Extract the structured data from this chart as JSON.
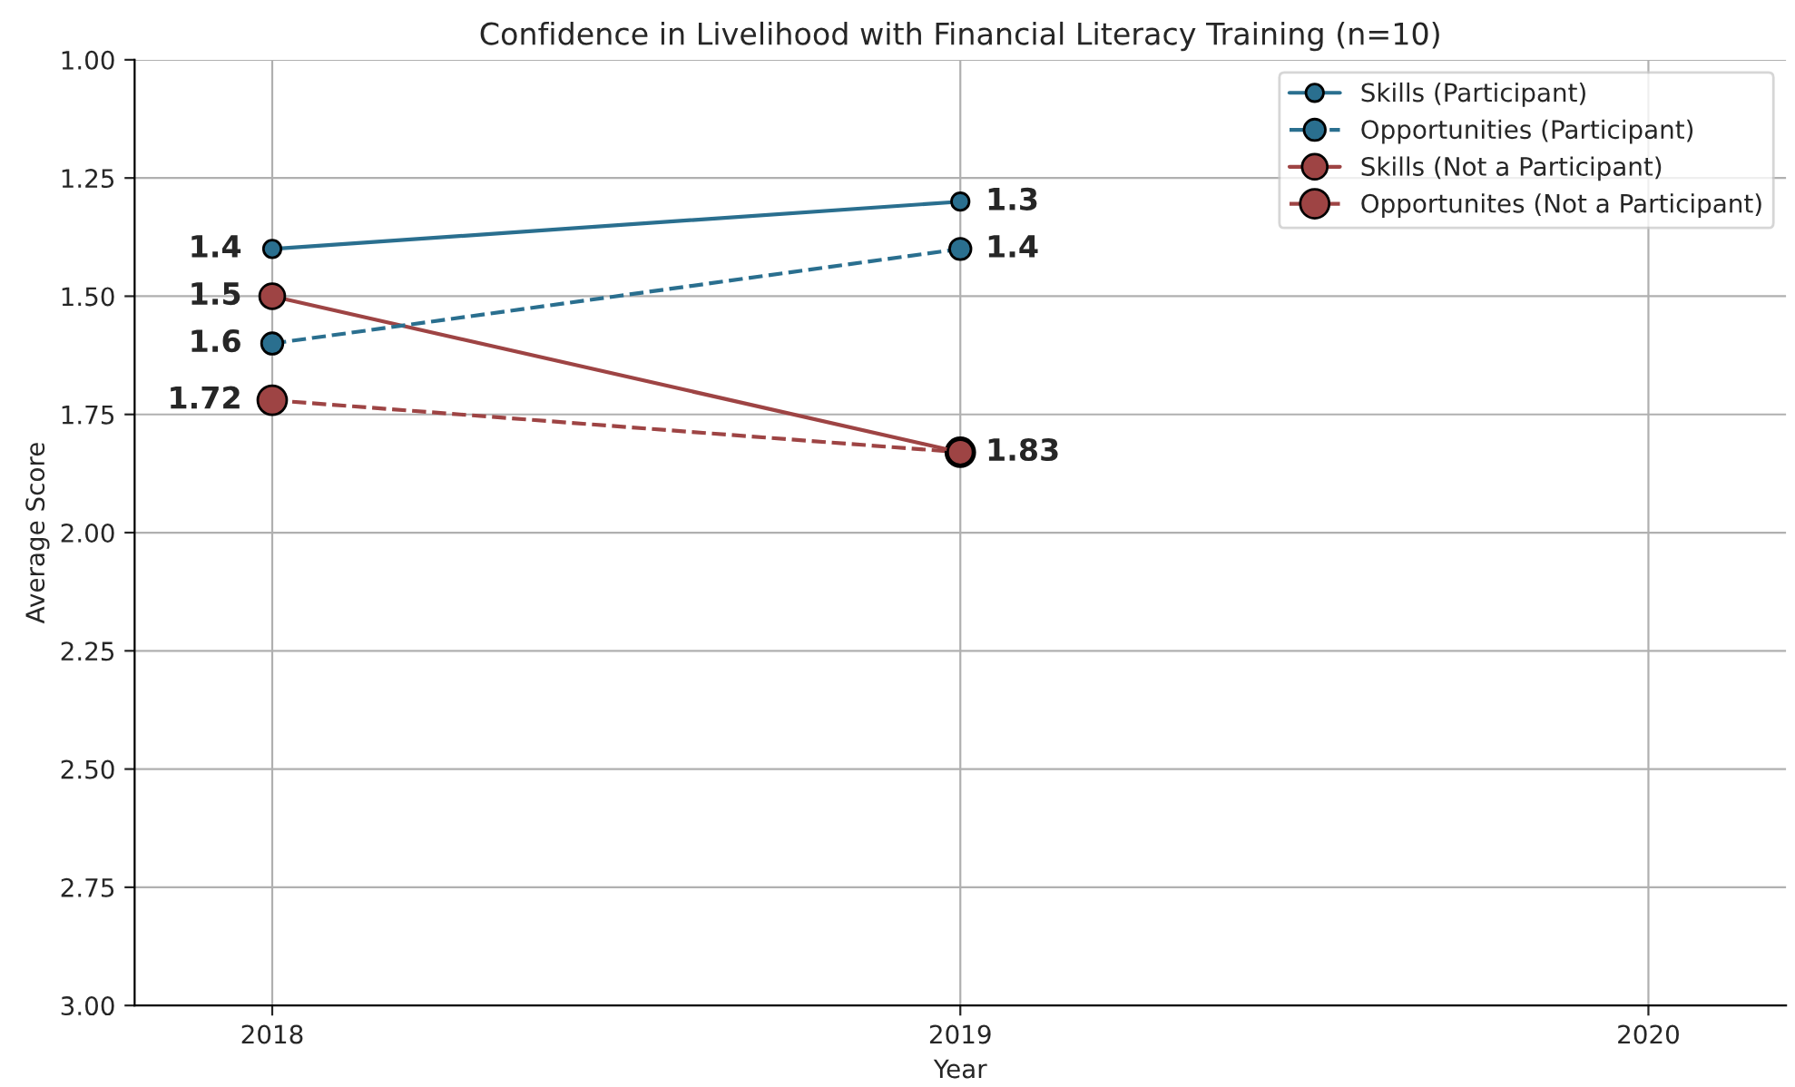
{
  "chart_data": {
    "type": "line",
    "title": "Confidence in Livelihood with Financial Literacy Training (n=10)",
    "xlabel": "Year",
    "ylabel": "Average Score",
    "x": [
      2018,
      2019
    ],
    "series": [
      {
        "name": "Skills (Participant)",
        "color": "#2a6f8f",
        "values": [
          1.4,
          1.3
        ],
        "line_style": "solid",
        "value_labels": [
          "1.4",
          "1.3"
        ]
      },
      {
        "name": "Opportunities (Participant)",
        "color": "#2a6f8f",
        "values": [
          1.6,
          1.4
        ],
        "line_style": "dashed",
        "value_labels": [
          "1.6",
          "1.4"
        ]
      },
      {
        "name": "Skills (Not a Participant)",
        "color": "#9e4444",
        "values": [
          1.5,
          1.83
        ],
        "line_style": "solid",
        "value_labels": [
          "1.5",
          "1.83"
        ]
      },
      {
        "name": "Opportunites (Not a Participant)",
        "color": "#9e4444",
        "values": [
          1.72,
          1.83
        ],
        "line_style": "dashed",
        "value_labels": [
          "1.72",
          null
        ]
      }
    ],
    "xlim": [
      2017.8,
      2020.2
    ],
    "xticks": [
      2018,
      2019,
      2020
    ],
    "ylim": [
      3.0,
      1.0
    ],
    "yticks": [
      {
        "value": 1.0,
        "label": "1.00"
      },
      {
        "value": 1.25,
        "label": "1.25"
      },
      {
        "value": 1.5,
        "label": "1.50"
      },
      {
        "value": 1.75,
        "label": "1.75"
      },
      {
        "value": 2.0,
        "label": "2.00"
      },
      {
        "value": 2.25,
        "label": "2.25"
      },
      {
        "value": 2.5,
        "label": "2.50"
      },
      {
        "value": 2.75,
        "label": "2.75"
      },
      {
        "value": 3.0,
        "label": "3.00"
      }
    ],
    "grid": true,
    "legend": "top right",
    "marker": "circle"
  }
}
